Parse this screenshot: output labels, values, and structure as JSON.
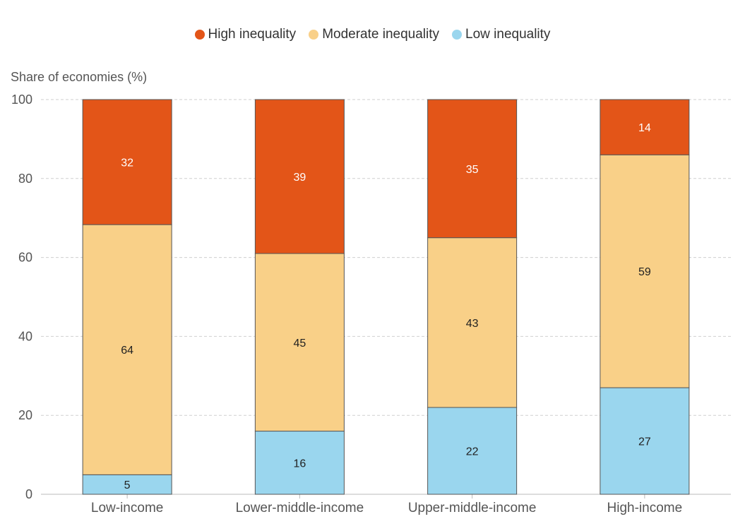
{
  "chart_data": {
    "type": "bar",
    "stacked": true,
    "ylabel": "Share of economies (%)",
    "ylim": [
      0,
      100
    ],
    "yticks": [
      0,
      20,
      40,
      60,
      80,
      100
    ],
    "grid": true,
    "legend_position": "top-center",
    "categories": [
      "Low-income",
      "Lower-middle-income",
      "Upper-middle-income",
      "High-income"
    ],
    "series": [
      {
        "name": "Low inequality",
        "color": "#9ad6ee",
        "values": [
          5,
          16,
          22,
          27
        ]
      },
      {
        "name": "Moderate inequality",
        "color": "#f9d088",
        "values": [
          64,
          45,
          43,
          59
        ]
      },
      {
        "name": "High inequality",
        "color": "#e35518",
        "values": [
          32,
          39,
          35,
          14
        ]
      }
    ],
    "legend_order": [
      "High inequality",
      "Moderate inequality",
      "Low inequality"
    ]
  }
}
